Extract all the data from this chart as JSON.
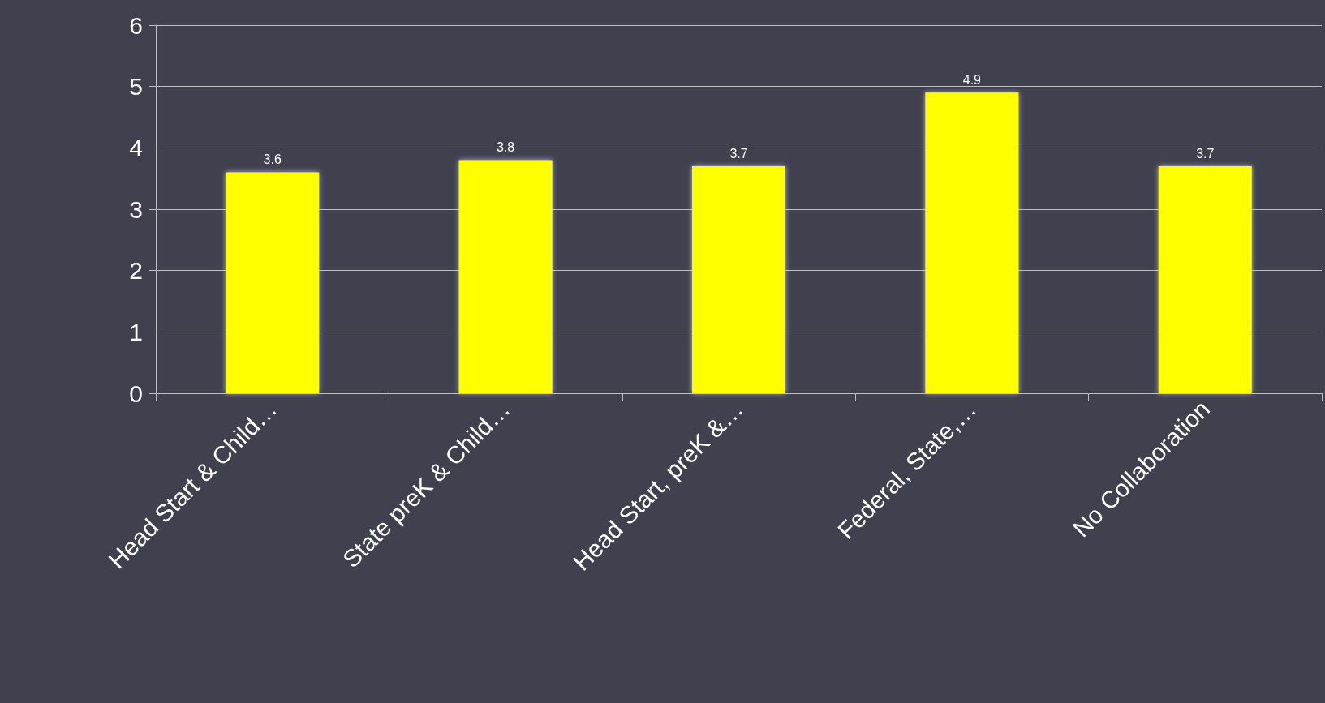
{
  "chart_data": {
    "type": "bar",
    "categories": [
      "Head Start & Child…",
      "State preK & Child…",
      "Head Start, preK &…",
      "Federal, State,…",
      "No Collaboration"
    ],
    "values": [
      3.6,
      3.8,
      3.7,
      4.9,
      3.7
    ],
    "color": "#ffff00",
    "ylim": [
      0,
      6
    ],
    "yticks": [
      0,
      1,
      2,
      3,
      4,
      5,
      6
    ],
    "grid": "y",
    "data_labels": true
  }
}
